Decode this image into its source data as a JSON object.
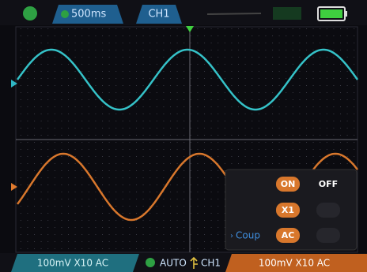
{
  "top_bar": {
    "timebase": "500ms",
    "channel": "CH1"
  },
  "menu": {
    "rows": [
      {
        "buttons": [
          "ON",
          "OFF"
        ]
      },
      {
        "buttons": [
          "X1"
        ]
      },
      {
        "label": "Coup",
        "buttons": [
          "AC"
        ]
      }
    ]
  },
  "bottom_bar": {
    "ch1": "100mV X10 AC",
    "trigger_mode": "AUTO",
    "trigger_source": "CH1",
    "ch2": "100mV X10 AC"
  }
}
